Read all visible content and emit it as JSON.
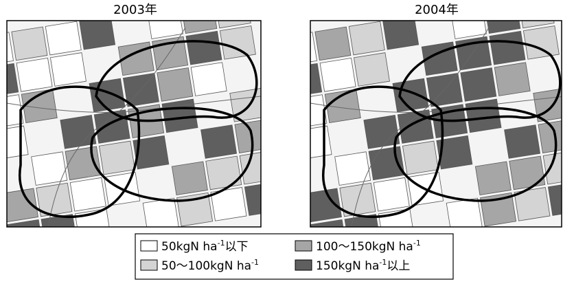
{
  "panels": [
    {
      "title": "2003年"
    },
    {
      "title": "2004年"
    }
  ],
  "legend": {
    "items": [
      {
        "color": "#ffffff",
        "parts": [
          "50kgN ha",
          "-1",
          "以下"
        ]
      },
      {
        "color": "#d4d4d4",
        "parts": [
          "50～100kgN ha",
          "-1"
        ]
      },
      {
        "color": "#a6a6a6",
        "parts": [
          "100～150kgN ha",
          "-1"
        ]
      },
      {
        "color": "#5f5f5f",
        "parts": [
          "150kgN ha",
          "-1",
          "以上"
        ]
      }
    ]
  }
}
